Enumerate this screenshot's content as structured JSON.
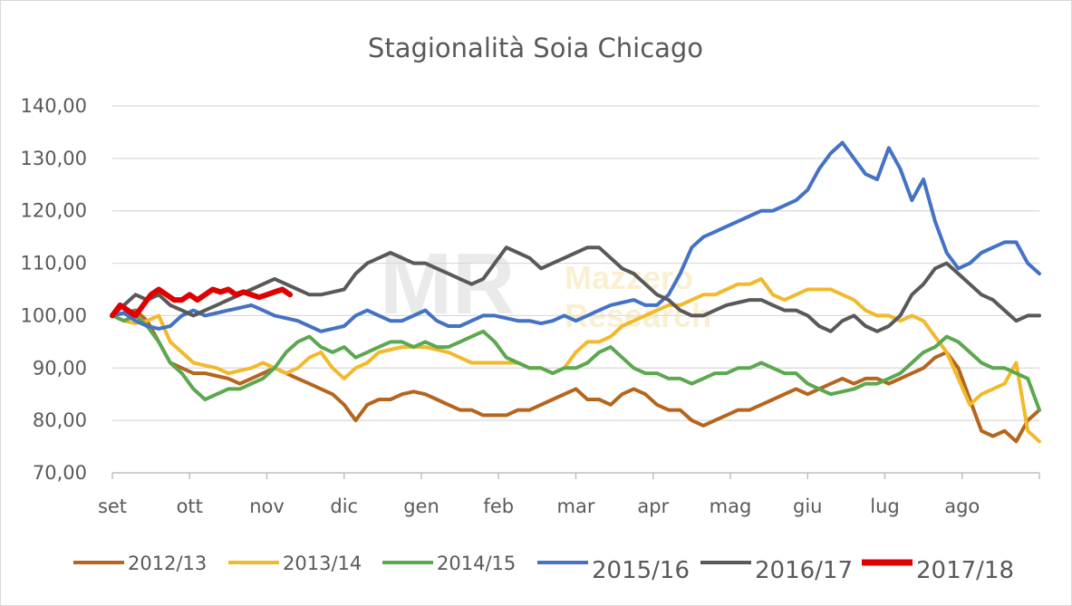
{
  "chart_data": {
    "type": "line",
    "title": "Stagionalità Soia Chicago",
    "xlabel": "",
    "ylabel": "",
    "ylim": [
      70,
      140
    ],
    "y_ticks": [
      "70,00",
      "80,00",
      "90,00",
      "100,00",
      "110,00",
      "120,00",
      "130,00",
      "140,00"
    ],
    "categories": [
      "set",
      "ott",
      "nov",
      "dic",
      "gen",
      "feb",
      "mar",
      "apr",
      "mag",
      "giu",
      "lug",
      "ago"
    ],
    "legend_position": "bottom",
    "grid": true,
    "watermark": {
      "logo": "MR",
      "line1": "Mazzero",
      "line2": "Research"
    },
    "series": [
      {
        "name": "2012/13",
        "color": "#b5651d",
        "x": [
          0,
          0.15,
          0.3,
          0.45,
          0.6,
          0.75,
          0.9,
          1.05,
          1.2,
          1.35,
          1.5,
          1.65,
          1.8,
          1.95,
          2.1,
          2.25,
          2.4,
          2.55,
          2.7,
          2.85,
          3.0,
          3.15,
          3.3,
          3.45,
          3.6,
          3.75,
          3.9,
          4.05,
          4.2,
          4.35,
          4.5,
          4.65,
          4.8,
          4.95,
          5.1,
          5.25,
          5.4,
          5.55,
          5.7,
          5.85,
          6.0,
          6.15,
          6.3,
          6.45,
          6.6,
          6.75,
          6.9,
          7.05,
          7.2,
          7.35,
          7.5,
          7.65,
          7.8,
          7.95,
          8.1,
          8.25,
          8.4,
          8.55,
          8.7,
          8.85,
          9.0,
          9.15,
          9.3,
          9.45,
          9.6,
          9.75,
          9.9,
          10.05,
          10.2,
          10.35,
          10.5,
          10.65,
          10.8,
          10.95,
          11.1,
          11.25,
          11.4,
          11.55,
          11.7,
          11.85,
          12.0
        ],
        "values": [
          100,
          100.5,
          101,
          99,
          95,
          91,
          90,
          89,
          89,
          88.5,
          88,
          87,
          88,
          89,
          90,
          89,
          88,
          87,
          86,
          85,
          83,
          80,
          83,
          84,
          84,
          85,
          85.5,
          85,
          84,
          83,
          82,
          82,
          81,
          81,
          81,
          82,
          82,
          83,
          84,
          85,
          86,
          84,
          84,
          83,
          85,
          86,
          85,
          83,
          82,
          82,
          80,
          79,
          80,
          81,
          82,
          82,
          83,
          84,
          85,
          86,
          85,
          86,
          87,
          88,
          87,
          88,
          88,
          87,
          88,
          89,
          90,
          92,
          93,
          90,
          84,
          78,
          77,
          78,
          76,
          80,
          82
        ]
      },
      {
        "name": "2013/14",
        "color": "#f2b92c",
        "x": [
          0,
          0.15,
          0.3,
          0.45,
          0.6,
          0.75,
          0.9,
          1.05,
          1.2,
          1.35,
          1.5,
          1.65,
          1.8,
          1.95,
          2.1,
          2.25,
          2.4,
          2.55,
          2.7,
          2.85,
          3.0,
          3.15,
          3.3,
          3.45,
          3.6,
          3.75,
          3.9,
          4.05,
          4.2,
          4.35,
          4.5,
          4.65,
          4.8,
          4.95,
          5.1,
          5.25,
          5.4,
          5.55,
          5.7,
          5.85,
          6.0,
          6.15,
          6.3,
          6.45,
          6.6,
          6.75,
          6.9,
          7.05,
          7.2,
          7.35,
          7.5,
          7.65,
          7.8,
          7.95,
          8.1,
          8.25,
          8.4,
          8.55,
          8.7,
          8.85,
          9.0,
          9.15,
          9.3,
          9.45,
          9.6,
          9.75,
          9.9,
          10.05,
          10.2,
          10.35,
          10.5,
          10.65,
          10.8,
          10.95,
          11.1,
          11.25,
          11.4,
          11.55,
          11.7,
          11.85,
          12.0
        ],
        "values": [
          100,
          99,
          98.5,
          99,
          100,
          95,
          93,
          91,
          90.5,
          90,
          89,
          89.5,
          90,
          91,
          90,
          89,
          90,
          92,
          93,
          90,
          88,
          90,
          91,
          93,
          93.5,
          94,
          94,
          94,
          93.5,
          93,
          92,
          91,
          91,
          91,
          91,
          91,
          90,
          90,
          89,
          90,
          93,
          95,
          95,
          96,
          98,
          99,
          100,
          101,
          102,
          102,
          103,
          104,
          104,
          105,
          106,
          106,
          107,
          104,
          103,
          104,
          105,
          105,
          105,
          104,
          103,
          101,
          100,
          100,
          99,
          100,
          99,
          96,
          93,
          88,
          83,
          85,
          86,
          87,
          91,
          78,
          76
        ]
      },
      {
        "name": "2014/15",
        "color": "#5ba84f",
        "x": [
          0,
          0.15,
          0.3,
          0.45,
          0.6,
          0.75,
          0.9,
          1.05,
          1.2,
          1.35,
          1.5,
          1.65,
          1.8,
          1.95,
          2.1,
          2.25,
          2.4,
          2.55,
          2.7,
          2.85,
          3.0,
          3.15,
          3.3,
          3.45,
          3.6,
          3.75,
          3.9,
          4.05,
          4.2,
          4.35,
          4.5,
          4.65,
          4.8,
          4.95,
          5.1,
          5.25,
          5.4,
          5.55,
          5.7,
          5.85,
          6.0,
          6.15,
          6.3,
          6.45,
          6.6,
          6.75,
          6.9,
          7.05,
          7.2,
          7.35,
          7.5,
          7.65,
          7.8,
          7.95,
          8.1,
          8.25,
          8.4,
          8.55,
          8.7,
          8.85,
          9.0,
          9.15,
          9.3,
          9.45,
          9.6,
          9.75,
          9.9,
          10.05,
          10.2,
          10.35,
          10.5,
          10.65,
          10.8,
          10.95,
          11.1,
          11.25,
          11.4,
          11.55,
          11.7,
          11.85,
          12.0
        ],
        "values": [
          100,
          99,
          100,
          98,
          95,
          91,
          89,
          86,
          84,
          85,
          86,
          86,
          87,
          88,
          90,
          93,
          95,
          96,
          94,
          93,
          94,
          92,
          93,
          94,
          95,
          95,
          94,
          95,
          94,
          94,
          95,
          96,
          97,
          95,
          92,
          91,
          90,
          90,
          89,
          90,
          90,
          91,
          93,
          94,
          92,
          90,
          89,
          89,
          88,
          88,
          87,
          88,
          89,
          89,
          90,
          90,
          91,
          90,
          89,
          89,
          87,
          86,
          85,
          85.5,
          86,
          87,
          87,
          88,
          89,
          91,
          93,
          94,
          96,
          95,
          93,
          91,
          90,
          90,
          89,
          88,
          82
        ]
      },
      {
        "name": "2015/16",
        "color": "#4472c4",
        "x": [
          0,
          0.15,
          0.3,
          0.45,
          0.6,
          0.75,
          0.9,
          1.05,
          1.2,
          1.35,
          1.5,
          1.65,
          1.8,
          1.95,
          2.1,
          2.25,
          2.4,
          2.55,
          2.7,
          2.85,
          3.0,
          3.15,
          3.3,
          3.45,
          3.6,
          3.75,
          3.9,
          4.05,
          4.2,
          4.35,
          4.5,
          4.65,
          4.8,
          4.95,
          5.1,
          5.25,
          5.4,
          5.55,
          5.7,
          5.85,
          6.0,
          6.15,
          6.3,
          6.45,
          6.6,
          6.75,
          6.9,
          7.05,
          7.2,
          7.35,
          7.5,
          7.65,
          7.8,
          7.95,
          8.1,
          8.25,
          8.4,
          8.55,
          8.7,
          8.85,
          9.0,
          9.15,
          9.3,
          9.45,
          9.6,
          9.75,
          9.9,
          10.05,
          10.2,
          10.35,
          10.5,
          10.65,
          10.8,
          10.95,
          11.1,
          11.25,
          11.4,
          11.55,
          11.7,
          11.85,
          12.0
        ],
        "values": [
          100,
          100.5,
          99,
          98,
          97.5,
          98,
          100,
          101,
          100,
          100.5,
          101,
          101.5,
          102,
          101,
          100,
          99.5,
          99,
          98,
          97,
          97.5,
          98,
          100,
          101,
          100,
          99,
          99,
          100,
          101,
          99,
          98,
          98,
          99,
          100,
          100,
          99.5,
          99,
          99,
          98.5,
          99,
          100,
          99,
          100,
          101,
          102,
          102.5,
          103,
          102,
          102,
          104,
          108,
          113,
          115,
          116,
          117,
          118,
          119,
          120,
          120,
          121,
          122,
          124,
          128,
          131,
          133,
          130,
          127,
          126,
          132,
          128,
          122,
          126,
          118,
          112,
          109,
          110,
          112,
          113,
          114,
          114,
          110,
          108
        ]
      },
      {
        "name": "2016/17",
        "color": "#595959",
        "x": [
          0,
          0.15,
          0.3,
          0.45,
          0.6,
          0.75,
          0.9,
          1.05,
          1.2,
          1.35,
          1.5,
          1.65,
          1.8,
          1.95,
          2.1,
          2.25,
          2.4,
          2.55,
          2.7,
          2.85,
          3.0,
          3.15,
          3.3,
          3.45,
          3.6,
          3.75,
          3.9,
          4.05,
          4.2,
          4.35,
          4.5,
          4.65,
          4.8,
          4.95,
          5.1,
          5.25,
          5.4,
          5.55,
          5.7,
          5.85,
          6.0,
          6.15,
          6.3,
          6.45,
          6.6,
          6.75,
          6.9,
          7.05,
          7.2,
          7.35,
          7.5,
          7.65,
          7.8,
          7.95,
          8.1,
          8.25,
          8.4,
          8.55,
          8.7,
          8.85,
          9.0,
          9.15,
          9.3,
          9.45,
          9.6,
          9.75,
          9.9,
          10.05,
          10.2,
          10.35,
          10.5,
          10.65,
          10.8,
          10.95,
          11.1,
          11.25,
          11.4,
          11.55,
          11.7,
          11.85,
          12.0
        ],
        "values": [
          100,
          102,
          104,
          103,
          104,
          102,
          101,
          100,
          101,
          102,
          103,
          104,
          105,
          106,
          107,
          106,
          105,
          104,
          104,
          104.5,
          105,
          108,
          110,
          111,
          112,
          111,
          110,
          110,
          109,
          108,
          107,
          106,
          107,
          110,
          113,
          112,
          111,
          109,
          110,
          111,
          112,
          113,
          113,
          111,
          109,
          108,
          106,
          104,
          103,
          101,
          100,
          100,
          101,
          102,
          102.5,
          103,
          103,
          102,
          101,
          101,
          100,
          98,
          97,
          99,
          100,
          98,
          97,
          98,
          100,
          104,
          106,
          109,
          110,
          108,
          106,
          104,
          103,
          101,
          99,
          100,
          100
        ]
      },
      {
        "name": "2017/18",
        "color": "#e00000",
        "x": [
          0,
          0.1,
          0.2,
          0.3,
          0.4,
          0.5,
          0.6,
          0.7,
          0.8,
          0.9,
          1.0,
          1.1,
          1.2,
          1.3,
          1.4,
          1.5,
          1.6,
          1.7,
          1.8,
          1.9,
          2.0,
          2.1,
          2.2,
          2.3
        ],
        "values": [
          100,
          102,
          101,
          100,
          102,
          104,
          105,
          104,
          103,
          103,
          104,
          103,
          104,
          105,
          104.5,
          105,
          104,
          104.5,
          104,
          103.5,
          104,
          104.5,
          105,
          104
        ]
      }
    ]
  }
}
